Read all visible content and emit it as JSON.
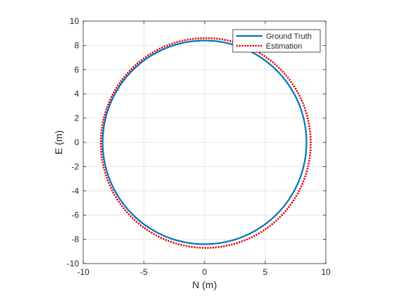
{
  "chart_data": {
    "type": "line",
    "title": "",
    "xlabel": "N (m)",
    "ylabel": "E (m)",
    "xlim": [
      -10,
      10
    ],
    "ylim": [
      -10,
      10
    ],
    "xticks": [
      -10,
      -5,
      0,
      5,
      10
    ],
    "yticks": [
      -10,
      -8,
      -6,
      -4,
      -2,
      0,
      2,
      4,
      6,
      8,
      10
    ],
    "xtick_labels": [
      "-10",
      "-5",
      "0",
      "5",
      "10"
    ],
    "ytick_labels": [
      "-10",
      "-8",
      "-6",
      "-4",
      "-2",
      "0",
      "2",
      "4",
      "6",
      "8",
      "10"
    ],
    "grid": true,
    "legend_location": "top-right",
    "series": [
      {
        "name": "Ground Truth",
        "shape": "circle",
        "center": [
          0,
          0
        ],
        "radius": 8.4,
        "color": "#0072BD",
        "line_style": "solid"
      },
      {
        "name": "Estimation",
        "shape": "circle",
        "center": [
          0.1,
          -0.05
        ],
        "radius": 8.65,
        "color": "#E00000",
        "line_style": "dotted"
      }
    ]
  }
}
